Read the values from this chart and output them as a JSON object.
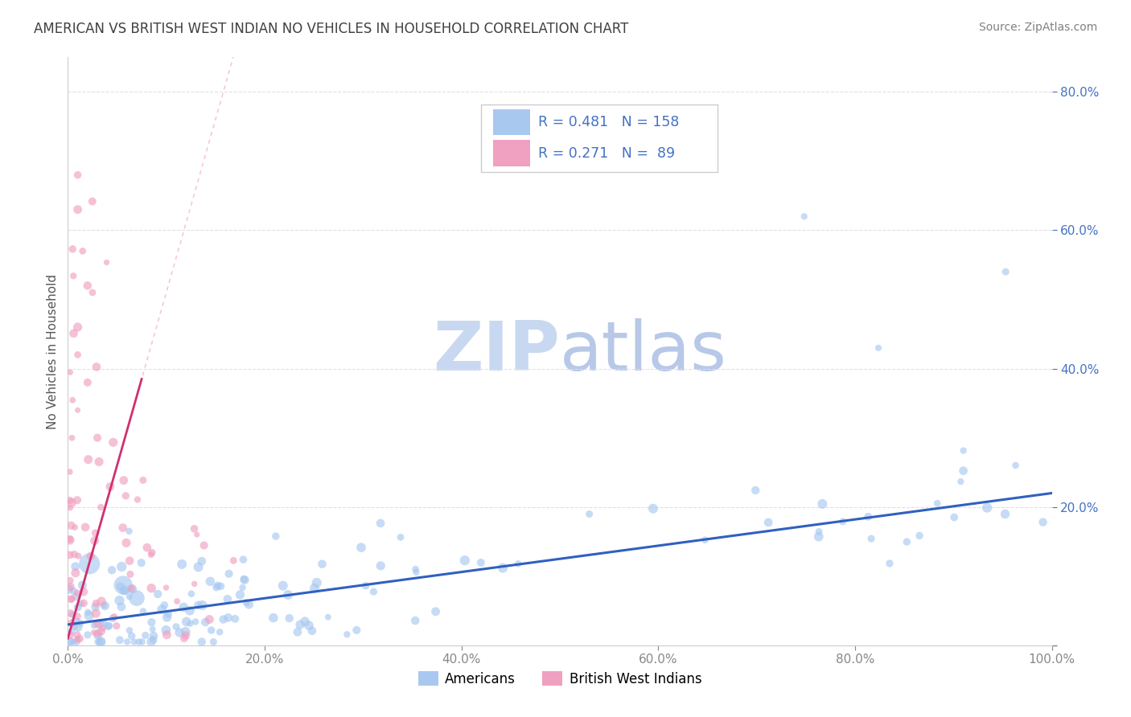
{
  "title": "AMERICAN VS BRITISH WEST INDIAN NO VEHICLES IN HOUSEHOLD CORRELATION CHART",
  "source": "Source: ZipAtlas.com",
  "ylabel": "No Vehicles in Household",
  "xlim": [
    0.0,
    1.0
  ],
  "ylim": [
    0.0,
    0.85
  ],
  "xtick_vals": [
    0.0,
    0.2,
    0.4,
    0.6,
    0.8,
    1.0
  ],
  "xtick_labels": [
    "0.0%",
    "20.0%",
    "40.0%",
    "60.0%",
    "80.0%",
    "100.0%"
  ],
  "ytick_vals": [
    0.0,
    0.2,
    0.4,
    0.6,
    0.8
  ],
  "ytick_labels": [
    "",
    "20.0%",
    "40.0%",
    "60.0%",
    "80.0%"
  ],
  "american_R": 0.481,
  "american_N": 158,
  "bwi_R": 0.271,
  "bwi_N": 89,
  "american_color": "#a8c8f0",
  "bwi_color": "#f0a0c0",
  "american_line_color": "#3060c0",
  "bwi_line_color": "#d03070",
  "bwi_dash_color": "#f0a0c0",
  "watermark_zip_color": "#c8d8f0",
  "watermark_atlas_color": "#b8c8e8",
  "legend_text_color": "#4472c4",
  "legend_n_color": "#e05a00",
  "grid_color": "#e0e0e0",
  "title_color": "#404040",
  "source_color": "#808080",
  "axis_color": "#cccccc"
}
